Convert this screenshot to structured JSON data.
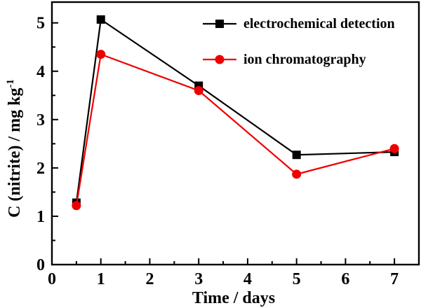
{
  "figure": {
    "background": "#ffffff"
  },
  "chart_data": {
    "type": "line",
    "title": "",
    "xlabel": "Time / days",
    "ylabel": "C (nitrite) / mg kg⁻¹",
    "ylabel_main": "C (nitrite) / mg kg",
    "ylabel_sup": "-1",
    "xlim": [
      0,
      7.5
    ],
    "ylim": [
      0,
      5.43
    ],
    "xticks": [
      0,
      1,
      2,
      3,
      4,
      5,
      6,
      7
    ],
    "yticks": [
      0,
      1,
      2,
      3,
      4,
      5
    ],
    "minor_tick_step": 0.5,
    "grid": false,
    "legend_position": "inside-top-right",
    "axis_color": "#000000",
    "series": [
      {
        "name": "electrochemical detection",
        "color": "#000000",
        "marker": "square",
        "x": [
          0.5,
          1,
          3,
          5,
          7
        ],
        "y": [
          1.28,
          5.07,
          3.7,
          2.27,
          2.33
        ]
      },
      {
        "name": "ion chromatography",
        "color": "#ee0000",
        "marker": "circle",
        "x": [
          0.5,
          1,
          3,
          5,
          7
        ],
        "y": [
          1.22,
          4.35,
          3.6,
          1.87,
          2.4
        ]
      }
    ]
  }
}
